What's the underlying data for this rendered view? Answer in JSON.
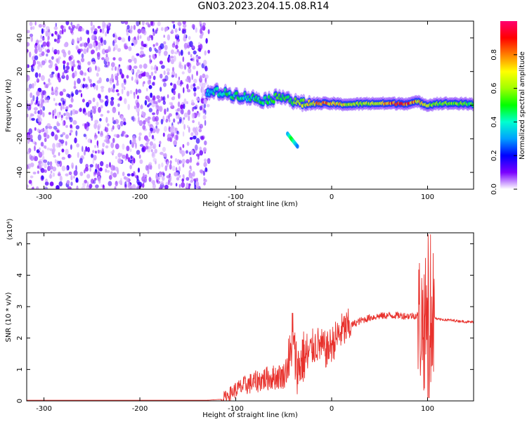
{
  "title": "GN03.2023.204.15.08.R14",
  "chart_data": [
    {
      "type": "heatmap",
      "xlabel": "Height of straight line (km)",
      "ylabel": "Frequency (Hz)",
      "xlim": [
        -318,
        148
      ],
      "ylim": [
        -50,
        50
      ],
      "xticks": [
        -300,
        -200,
        -100,
        0,
        100
      ],
      "yticks": [
        -40,
        -20,
        0,
        20,
        40
      ],
      "colorbar": {
        "label": "Normalized spectral amplitude",
        "range": [
          0,
          1
        ],
        "ticks": [
          0.0,
          0.2,
          0.4,
          0.6,
          0.8
        ]
      },
      "signal_track": [
        {
          "x": -130,
          "freq": 7,
          "amplitude": 0.35
        },
        {
          "x": -120,
          "freq": 8,
          "amplitude": 0.42
        },
        {
          "x": -110,
          "freq": 7,
          "amplitude": 0.45
        },
        {
          "x": -100,
          "freq": 6,
          "amplitude": 0.45
        },
        {
          "x": -90,
          "freq": 5,
          "amplitude": 0.42
        },
        {
          "x": -80,
          "freq": 4,
          "amplitude": 0.45
        },
        {
          "x": -70,
          "freq": 3,
          "amplitude": 0.45
        },
        {
          "x": -60,
          "freq": 4,
          "amplitude": 0.5
        },
        {
          "x": -50,
          "freq": 6,
          "amplitude": 0.5
        },
        {
          "x": -40,
          "freq": 2,
          "amplitude": 0.55
        },
        {
          "x": -30,
          "freq": 1,
          "amplitude": 0.6
        },
        {
          "x": -20,
          "freq": 1,
          "amplitude": 0.7
        },
        {
          "x": -10,
          "freq": 1,
          "amplitude": 0.8
        },
        {
          "x": 0,
          "freq": 1,
          "amplitude": 0.75
        },
        {
          "x": 10,
          "freq": 0.5,
          "amplitude": 0.7
        },
        {
          "x": 20,
          "freq": 0.5,
          "amplitude": 0.6
        },
        {
          "x": 40,
          "freq": 1,
          "amplitude": 0.6
        },
        {
          "x": 60,
          "freq": 1,
          "amplitude": 0.8
        },
        {
          "x": 80,
          "freq": 1,
          "amplitude": 0.85
        },
        {
          "x": 90,
          "freq": 2,
          "amplitude": 0.7
        },
        {
          "x": 100,
          "freq": 0,
          "amplitude": 0.6
        },
        {
          "x": 110,
          "freq": 1,
          "amplitude": 0.55
        },
        {
          "x": 130,
          "freq": 1,
          "amplitude": 0.55
        },
        {
          "x": 148,
          "freq": 0.5,
          "amplitude": 0.5
        }
      ],
      "secondary_track": [
        {
          "x": -46,
          "freq": -17,
          "amplitude": 0.3
        },
        {
          "x": -42,
          "freq": -20,
          "amplitude": 0.5
        },
        {
          "x": -35,
          "freq": -25,
          "amplitude": 0.25
        }
      ]
    },
    {
      "type": "line",
      "xlabel": "Height of straight line (km)",
      "ylabel": "SNR (10 * v/v)",
      "yscale_note": "(x10⁴)",
      "xlim": [
        -318,
        148
      ],
      "ylim": [
        0,
        5.35
      ],
      "xticks": [
        -300,
        -200,
        -100,
        0,
        100
      ],
      "yticks": [
        0,
        1,
        2,
        3,
        4,
        5
      ],
      "series": [
        {
          "color": "#e8312c",
          "x": [
            -318,
            -200,
            -130,
            -115,
            -110,
            -100,
            -90,
            -80,
            -70,
            -60,
            -50,
            -45,
            -40,
            -35,
            -30,
            -25,
            -20,
            -15,
            -10,
            -5,
            0,
            5,
            10,
            20,
            30,
            40,
            50,
            60,
            70,
            80,
            90,
            95,
            100,
            103,
            105,
            110,
            120,
            130,
            140,
            148
          ],
          "y": [
            0.02,
            0.02,
            0.02,
            0.05,
            0.15,
            0.35,
            0.5,
            0.6,
            0.7,
            0.75,
            0.8,
            1.2,
            1.6,
            1.0,
            1.4,
            1.4,
            1.7,
            1.8,
            1.7,
            1.6,
            1.8,
            2.0,
            2.2,
            2.4,
            2.55,
            2.65,
            2.7,
            2.72,
            2.72,
            2.7,
            2.72,
            2.5,
            2.3,
            2.6,
            2.7,
            2.6,
            2.58,
            2.55,
            2.52,
            2.5
          ]
        }
      ]
    }
  ]
}
